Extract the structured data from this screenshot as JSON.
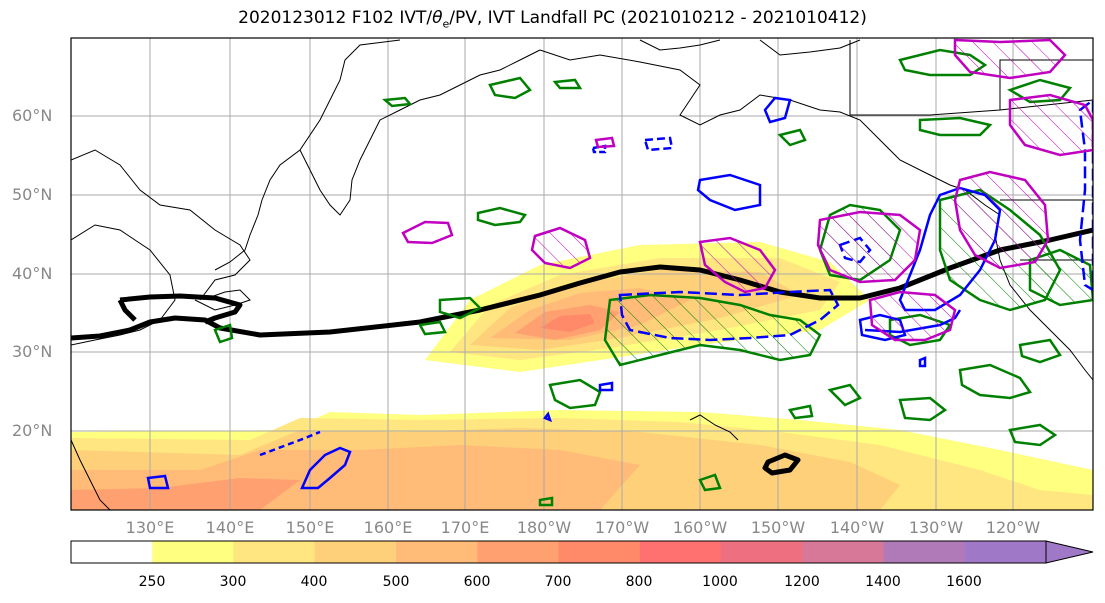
{
  "title_prefix": "2020123012 F102 IVT/",
  "title_theta": "θ",
  "title_sub": "e",
  "title_suffix": "/PV, IVT Landfall PC (2021010212 - 2021010412)",
  "lat_labels": [
    "60°N",
    "50°N",
    "40°N",
    "30°N",
    "20°N"
  ],
  "lon_labels": [
    "130°E",
    "140°E",
    "150°E",
    "160°E",
    "170°E",
    "180°W",
    "170°W",
    "160°W",
    "150°W",
    "140°W",
    "130°W",
    "120°W"
  ],
  "colorbar": {
    "ticks": [
      "250",
      "300",
      "400",
      "500",
      "600",
      "700",
      "800",
      "1000",
      "1200",
      "1400",
      "1600"
    ],
    "colors": [
      "#ffffff",
      "#ffff80",
      "#ffe680",
      "#ffd07a",
      "#ffbb77",
      "#ffa070",
      "#ff8a6a",
      "#ff7070",
      "#ee7080",
      "#d87898",
      "#b07ab8",
      "#a078c8"
    ]
  },
  "contour_colors": {
    "pv_green": "#008000",
    "pv_blue": "#0000ff",
    "pv_magenta": "#c000c0",
    "pc_black": "#000000"
  }
}
